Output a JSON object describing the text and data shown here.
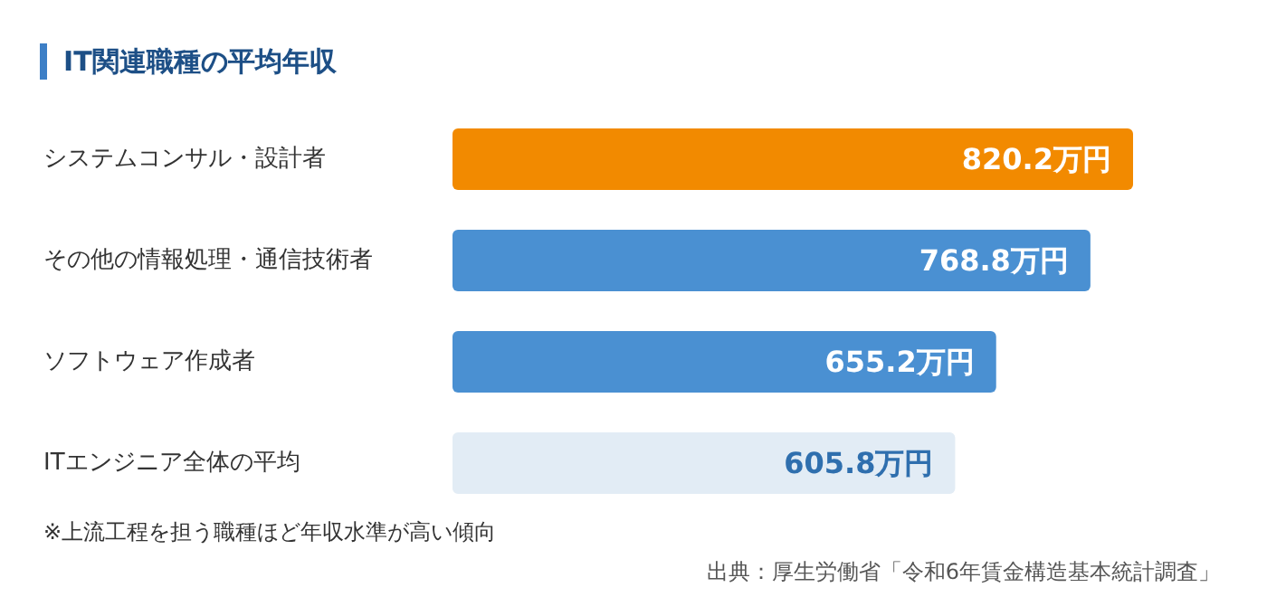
{
  "chart_data": {
    "type": "bar",
    "orientation": "horizontal",
    "title": "IT関連職種の平均年収",
    "categories": [
      "システムコンサル・設計者",
      "その他の情報処理・通信技術者",
      "ソフトウェア作成者",
      "ITエンジニア全体の平均"
    ],
    "values": [
      820.2,
      768.8,
      655.2,
      605.8
    ],
    "value_labels": [
      "820.2万円",
      "768.8万円",
      "655.2万円",
      "605.8万円"
    ],
    "colors": [
      "#f28a00",
      "#4a90d2",
      "#4a90d2",
      "#e2ecf5"
    ],
    "annotations": [
      "※上流工程を担う職種ほど年収水準が高い傾向",
      "出典：厚生労働省「令和6年賃金構造基本統計調査」"
    ]
  }
}
